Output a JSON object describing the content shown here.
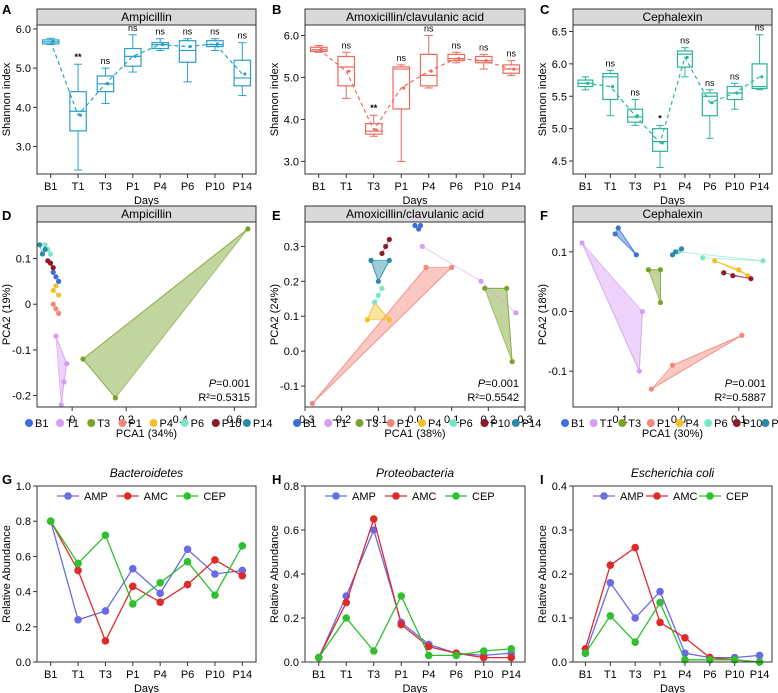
{
  "figure": {
    "category_labels": [
      "B1",
      "T1",
      "T3",
      "P1",
      "P4",
      "P6",
      "P10",
      "P14"
    ],
    "colors": {
      "B1": "#3d6fd9",
      "T1": "#d79bf2",
      "T3": "#7aa12b",
      "P1": "#f4867a",
      "P4": "#f2c12a",
      "P6": "#79e6c9",
      "P10": "#8b1a2b",
      "P14": "#2a8aa8",
      "AMP": "#6a6ae8",
      "AMC": "#e02a2a",
      "CEP": "#2ec02e",
      "box_amp": "#2a9fc9",
      "box_amc": "#ec6a5c",
      "box_cep": "#2ab59a",
      "strip": "#d9d9d9"
    }
  },
  "chart_data": [
    {
      "id": "A",
      "letter": "A",
      "type": "box",
      "title": "Ampicillin",
      "xlabel": "Days",
      "ylabel": "Shannon index",
      "ylim": [
        2.3,
        6.1
      ],
      "yticks": [
        "3.0",
        "4.0",
        "5.0",
        "6.0"
      ],
      "ytick_values": [
        3,
        4,
        5,
        6
      ],
      "categories": [
        "B1",
        "T1",
        "T3",
        "P1",
        "P4",
        "P6",
        "P10",
        "P14"
      ],
      "boxes": [
        {
          "min": 5.6,
          "q1": 5.62,
          "median": 5.67,
          "q3": 5.72,
          "max": 5.76,
          "mean": 5.68
        },
        {
          "min": 2.4,
          "q1": 3.4,
          "median": 3.9,
          "q3": 4.4,
          "max": 5.1,
          "mean": 3.8
        },
        {
          "min": 4.1,
          "q1": 4.4,
          "median": 4.6,
          "q3": 4.8,
          "max": 5.0,
          "mean": 4.6
        },
        {
          "min": 4.9,
          "q1": 5.05,
          "median": 5.3,
          "q3": 5.5,
          "max": 5.85,
          "mean": 5.3
        },
        {
          "min": 5.45,
          "q1": 5.5,
          "median": 5.6,
          "q3": 5.65,
          "max": 5.75,
          "mean": 5.6
        },
        {
          "min": 4.65,
          "q1": 5.15,
          "median": 5.45,
          "q3": 5.7,
          "max": 5.75,
          "mean": 5.55
        },
        {
          "min": 5.45,
          "q1": 5.55,
          "median": 5.6,
          "q3": 5.7,
          "max": 5.75,
          "mean": 5.62
        },
        {
          "min": 4.3,
          "q1": 4.55,
          "median": 4.75,
          "q3": 5.2,
          "max": 5.65,
          "mean": 4.85
        }
      ],
      "annotations": [
        "",
        "**",
        "ns",
        "ns",
        "ns",
        "ns",
        "ns",
        "ns"
      ]
    },
    {
      "id": "B",
      "letter": "B",
      "type": "box",
      "title": "Amoxicillin/clavulanic acid",
      "xlabel": "Days",
      "ylabel": "Shannon index",
      "ylim": [
        2.7,
        6.25
      ],
      "yticks": [
        "3.0",
        "4.0",
        "5.0",
        "6.0"
      ],
      "ytick_values": [
        3,
        4,
        5,
        6
      ],
      "categories": [
        "B1",
        "T1",
        "T3",
        "P1",
        "P4",
        "P6",
        "P10",
        "P14"
      ],
      "boxes": [
        {
          "min": 5.6,
          "q1": 5.62,
          "median": 5.66,
          "q3": 5.72,
          "max": 5.76,
          "mean": 5.67
        },
        {
          "min": 4.5,
          "q1": 4.8,
          "median": 5.25,
          "q3": 5.5,
          "max": 5.6,
          "mean": 5.15
        },
        {
          "min": 3.6,
          "q1": 3.65,
          "median": 3.72,
          "q3": 3.9,
          "max": 4.1,
          "mean": 3.75
        },
        {
          "min": 3.0,
          "q1": 4.25,
          "median": 5.2,
          "q3": 5.25,
          "max": 5.3,
          "mean": 4.75
        },
        {
          "min": 4.75,
          "q1": 4.8,
          "median": 5.05,
          "q3": 5.55,
          "max": 6.0,
          "mean": 5.15
        },
        {
          "min": 5.35,
          "q1": 5.4,
          "median": 5.45,
          "q3": 5.55,
          "max": 5.6,
          "mean": 5.45
        },
        {
          "min": 5.2,
          "q1": 5.35,
          "median": 5.4,
          "q3": 5.5,
          "max": 5.55,
          "mean": 5.4
        },
        {
          "min": 5.05,
          "q1": 5.1,
          "median": 5.2,
          "q3": 5.3,
          "max": 5.4,
          "mean": 5.2
        }
      ],
      "annotations": [
        "",
        "ns",
        "**",
        "ns",
        "ns",
        "ns",
        "ns",
        "ns"
      ]
    },
    {
      "id": "C",
      "letter": "C",
      "type": "box",
      "title": "Cephalexin",
      "xlabel": "Days",
      "ylabel": "Shannon index",
      "ylim": [
        4.3,
        6.6
      ],
      "yticks": [
        "4.5",
        "5.0",
        "5.5",
        "6.0",
        "6.5"
      ],
      "ytick_values": [
        4.5,
        5,
        5.5,
        6,
        6.5
      ],
      "categories": [
        "B1",
        "T1",
        "T3",
        "P1",
        "P4",
        "P6",
        "P10",
        "P14"
      ],
      "boxes": [
        {
          "min": 5.6,
          "q1": 5.65,
          "median": 5.7,
          "q3": 5.75,
          "max": 5.8,
          "mean": 5.7
        },
        {
          "min": 5.2,
          "q1": 5.45,
          "median": 5.8,
          "q3": 5.85,
          "max": 5.9,
          "mean": 5.65
        },
        {
          "min": 5.05,
          "q1": 5.1,
          "median": 5.18,
          "q3": 5.3,
          "max": 5.45,
          "mean": 5.2
        },
        {
          "min": 4.4,
          "q1": 4.65,
          "median": 4.8,
          "q3": 5.0,
          "max": 5.05,
          "mean": 4.78
        },
        {
          "min": 5.8,
          "q1": 5.95,
          "median": 6.15,
          "q3": 6.2,
          "max": 6.25,
          "mean": 6.1
        },
        {
          "min": 4.85,
          "q1": 5.2,
          "median": 5.5,
          "q3": 5.55,
          "max": 5.6,
          "mean": 5.4
        },
        {
          "min": 5.3,
          "q1": 5.45,
          "median": 5.55,
          "q3": 5.65,
          "max": 5.7,
          "mean": 5.55
        },
        {
          "min": 5.6,
          "q1": 5.62,
          "median": 5.65,
          "q3": 6.0,
          "max": 6.45,
          "mean": 5.8
        }
      ],
      "annotations": [
        "",
        "ns",
        "ns",
        "*",
        "ns",
        "ns",
        "ns",
        "ns"
      ]
    },
    {
      "id": "D",
      "letter": "D",
      "type": "scatter",
      "title": "Ampicillin",
      "xlabel": "PCA1 (34%)",
      "ylabel": "PCA2 (19%)",
      "xlim": [
        -0.13,
        0.68
      ],
      "ylim": [
        -0.225,
        0.18
      ],
      "xticks": [
        "0",
        "0.2",
        "0.4",
        "0.6"
      ],
      "xtick_values": [
        0,
        0.2,
        0.4,
        0.6
      ],
      "yticks": [
        "-0.2",
        "-0.1",
        "0",
        "0.1"
      ],
      "ytick_values": [
        -0.2,
        -0.1,
        0,
        0.1
      ],
      "stat_p": "=0.001",
      "stat_r": "R²=0.5315",
      "groups": [
        {
          "name": "B1",
          "points": [
            [
              -0.06,
              0.06
            ],
            [
              -0.05,
              0.05
            ],
            [
              -0.07,
              0.07
            ]
          ]
        },
        {
          "name": "T1",
          "points": [
            [
              -0.06,
              -0.07
            ],
            [
              -0.02,
              -0.13
            ],
            [
              -0.03,
              -0.17
            ],
            [
              -0.04,
              -0.22
            ]
          ]
        },
        {
          "name": "T3",
          "points": [
            [
              0.65,
              0.165
            ],
            [
              0.04,
              -0.12
            ],
            [
              0.16,
              -0.205
            ]
          ]
        },
        {
          "name": "P1",
          "points": [
            [
              -0.06,
              -0.01
            ],
            [
              -0.05,
              -0.02
            ],
            [
              -0.07,
              0.0
            ]
          ]
        },
        {
          "name": "P4",
          "points": [
            [
              -0.06,
              0.04
            ],
            [
              -0.07,
              0.03
            ],
            [
              -0.05,
              0.02
            ]
          ]
        },
        {
          "name": "P6",
          "points": [
            [
              -0.08,
              0.11
            ],
            [
              -0.1,
              0.13
            ],
            [
              -0.09,
              0.12
            ]
          ]
        },
        {
          "name": "P10",
          "points": [
            [
              -0.08,
              0.09
            ],
            [
              -0.07,
              0.08
            ],
            [
              -0.09,
              0.095
            ]
          ]
        },
        {
          "name": "P14",
          "points": [
            [
              -0.12,
              0.13
            ],
            [
              -0.11,
              0.11
            ],
            [
              -0.1,
              0.12
            ]
          ]
        }
      ],
      "hulls": [
        "T1",
        "T3"
      ]
    },
    {
      "id": "E",
      "letter": "E",
      "type": "scatter",
      "title": "Amoxicillin/clavulanic acid",
      "xlabel": "PCA1 (38%)",
      "ylabel": "PCA2 (24%)",
      "xlim": [
        -0.3,
        0.3
      ],
      "ylim": [
        -0.16,
        0.37
      ],
      "xticks": [
        "-0.3",
        "-0.2",
        "-0.1",
        "0.0",
        "0.1",
        "0.2",
        "0.3"
      ],
      "xtick_values": [
        -0.3,
        -0.2,
        -0.1,
        0,
        0.1,
        0.2,
        0.3
      ],
      "yticks": [
        "-0.1",
        "0.0",
        "0.1",
        "0.2",
        "0.3"
      ],
      "ytick_values": [
        -0.1,
        0,
        0.1,
        0.2,
        0.3
      ],
      "stat_p": "=0.001",
      "stat_r": "R²=0.5542",
      "groups": [
        {
          "name": "B1",
          "points": [
            [
              0.0,
              0.36
            ],
            [
              0.01,
              0.35
            ],
            [
              0.015,
              0.36
            ]
          ]
        },
        {
          "name": "T1",
          "points": [
            [
              0.02,
              0.3
            ],
            [
              0.18,
              0.2
            ],
            [
              0.275,
              0.11
            ]
          ]
        },
        {
          "name": "T3",
          "points": [
            [
              0.19,
              0.18
            ],
            [
              0.25,
              0.18
            ],
            [
              0.265,
              -0.03
            ]
          ]
        },
        {
          "name": "P1",
          "points": [
            [
              0.1,
              0.24
            ],
            [
              -0.28,
              -0.15
            ],
            [
              0.03,
              0.24
            ]
          ]
        },
        {
          "name": "P4",
          "points": [
            [
              -0.13,
              0.09
            ],
            [
              -0.11,
              0.14
            ],
            [
              -0.07,
              0.09
            ]
          ]
        },
        {
          "name": "P6",
          "points": [
            [
              -0.1,
              0.16
            ],
            [
              -0.11,
              0.14
            ],
            [
              -0.09,
              0.18
            ]
          ]
        },
        {
          "name": "P10",
          "points": [
            [
              -0.08,
              0.3
            ],
            [
              -0.07,
              0.32
            ],
            [
              -0.09,
              0.28
            ]
          ]
        },
        {
          "name": "P14",
          "points": [
            [
              -0.12,
              0.26
            ],
            [
              -0.1,
              0.2
            ],
            [
              -0.07,
              0.26
            ]
          ]
        }
      ],
      "hulls": [
        "P1",
        "T3",
        "P4",
        "P14"
      ]
    },
    {
      "id": "F",
      "letter": "F",
      "type": "scatter",
      "title": "Cephalexin",
      "xlabel": "PCA1 (30%)",
      "ylabel": "PCA2 (18%)",
      "xlim": [
        -0.175,
        0.155
      ],
      "ylim": [
        -0.16,
        0.15
      ],
      "xticks": [
        "-0.1",
        "0.0",
        "0.1"
      ],
      "xtick_values": [
        -0.1,
        0,
        0.1
      ],
      "yticks": [
        "-0.1",
        "0.0",
        "0.1"
      ],
      "ytick_values": [
        -0.1,
        0,
        0.1
      ],
      "stat_p": "=0.001",
      "stat_r": "R²=0.5887",
      "groups": [
        {
          "name": "B1",
          "points": [
            [
              -0.1,
              0.14
            ],
            [
              -0.07,
              0.095
            ],
            [
              -0.105,
              0.13
            ]
          ]
        },
        {
          "name": "T1",
          "points": [
            [
              -0.16,
              0.115
            ],
            [
              -0.065,
              -0.1
            ],
            [
              -0.06,
              -0.0
            ]
          ]
        },
        {
          "name": "T3",
          "points": [
            [
              -0.05,
              0.07
            ],
            [
              -0.03,
              0.07
            ],
            [
              -0.03,
              0.015
            ]
          ]
        },
        {
          "name": "P1",
          "points": [
            [
              -0.045,
              -0.13
            ],
            [
              0.105,
              -0.04
            ],
            [
              -0.01,
              -0.09
            ]
          ]
        },
        {
          "name": "P4",
          "points": [
            [
              0.06,
              0.085
            ],
            [
              0.1,
              0.07
            ],
            [
              0.115,
              0.06
            ]
          ]
        },
        {
          "name": "P6",
          "points": [
            [
              0.0,
              0.1
            ],
            [
              0.14,
              0.085
            ],
            [
              0.04,
              0.09
            ]
          ]
        },
        {
          "name": "P10",
          "points": [
            [
              0.09,
              0.06
            ],
            [
              0.12,
              0.055
            ],
            [
              0.075,
              0.065
            ]
          ]
        },
        {
          "name": "P14",
          "points": [
            [
              -0.01,
              0.095
            ],
            [
              -0.005,
              0.1
            ],
            [
              0.005,
              0.105
            ]
          ]
        }
      ],
      "hulls": [
        "T1",
        "P1",
        "T3",
        "B1",
        "P4"
      ]
    },
    {
      "id": "G",
      "letter": "G",
      "type": "line",
      "title": "Bacteroidetes",
      "xlabel": "Days",
      "ylabel": "Relative Abundance",
      "ylim": [
        0,
        1.0
      ],
      "yticks": [
        "0.0",
        "0.2",
        "0.4",
        "0.6",
        "0.8",
        "1.0"
      ],
      "ytick_values": [
        0,
        0.2,
        0.4,
        0.6,
        0.8,
        1.0
      ],
      "categories": [
        "B1",
        "T1",
        "T3",
        "P1",
        "P4",
        "P6",
        "P10",
        "P14"
      ],
      "series": [
        {
          "name": "AMP",
          "values": [
            0.8,
            0.24,
            0.29,
            0.53,
            0.39,
            0.64,
            0.5,
            0.52
          ]
        },
        {
          "name": "AMC",
          "values": [
            0.8,
            0.52,
            0.12,
            0.43,
            0.34,
            0.44,
            0.58,
            0.49
          ]
        },
        {
          "name": "CEP",
          "values": [
            0.8,
            0.56,
            0.72,
            0.33,
            0.45,
            0.57,
            0.38,
            0.66
          ]
        }
      ]
    },
    {
      "id": "H",
      "letter": "H",
      "type": "line",
      "title": "Proteobacteria",
      "xlabel": "Days",
      "ylabel": "Relative Abundance",
      "ylim": [
        0,
        0.8
      ],
      "yticks": [
        "0.0",
        "0.2",
        "0.4",
        "0.6",
        "0.8"
      ],
      "ytick_values": [
        0,
        0.2,
        0.4,
        0.6,
        0.8
      ],
      "categories": [
        "B1",
        "T1",
        "T3",
        "P1",
        "P4",
        "P6",
        "P10",
        "P14"
      ],
      "series": [
        {
          "name": "AMP",
          "values": [
            0.02,
            0.3,
            0.6,
            0.18,
            0.08,
            0.04,
            0.03,
            0.04
          ]
        },
        {
          "name": "AMC",
          "values": [
            0.02,
            0.27,
            0.65,
            0.17,
            0.07,
            0.04,
            0.02,
            0.02
          ]
        },
        {
          "name": "CEP",
          "values": [
            0.02,
            0.2,
            0.05,
            0.3,
            0.03,
            0.03,
            0.05,
            0.06
          ]
        }
      ]
    },
    {
      "id": "I",
      "letter": "I",
      "type": "line",
      "title": "Escherichia coli",
      "xlabel": "Days",
      "ylabel": "Relative Abundance",
      "ylim": [
        0,
        0.4
      ],
      "yticks": [
        "0.0",
        "0.1",
        "0.2",
        "0.3",
        "0.4"
      ],
      "ytick_values": [
        0,
        0.1,
        0.2,
        0.3,
        0.4
      ],
      "categories": [
        "B1",
        "T1",
        "T3",
        "P1",
        "P4",
        "P6",
        "P10",
        "P14"
      ],
      "series": [
        {
          "name": "AMP",
          "values": [
            0.02,
            0.18,
            0.1,
            0.16,
            0.02,
            0.01,
            0.01,
            0.015
          ]
        },
        {
          "name": "AMC",
          "values": [
            0.03,
            0.22,
            0.26,
            0.09,
            0.055,
            0.01,
            0.005,
            0.0
          ]
        },
        {
          "name": "CEP",
          "values": [
            0.02,
            0.105,
            0.045,
            0.135,
            0.005,
            0.005,
            0.005,
            0.0
          ]
        }
      ]
    }
  ]
}
